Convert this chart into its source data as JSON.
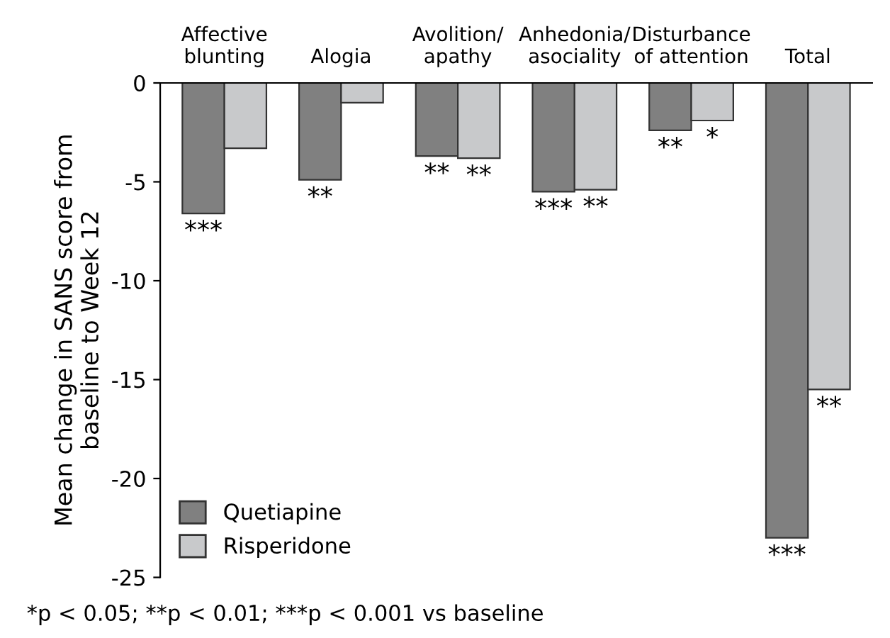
{
  "chart_data": {
    "type": "bar",
    "categories": [
      "Affective\nblunting",
      "Alogia",
      "Avolition/\napathy",
      "Anhedonia/\nasociality",
      "Disturbance\nof attention",
      "Total"
    ],
    "series": [
      {
        "name": "Quetiapine",
        "color": "#808080",
        "values": [
          -6.6,
          -4.9,
          -3.7,
          -5.5,
          -2.4,
          -23.0
        ]
      },
      {
        "name": "Risperidone",
        "color": "#c8c9cb",
        "values": [
          -3.3,
          -1.0,
          -3.8,
          -5.4,
          -1.9,
          -15.5
        ]
      }
    ],
    "ylabel": "Mean change in SANS score from\nbaseline to Week 12",
    "ylim": [
      -25,
      0
    ],
    "yticks": [
      -25,
      -20,
      -15,
      -10,
      -5,
      0
    ],
    "legend": "bottom left",
    "grid": false,
    "annotations": [
      {
        "text": "***",
        "x": "Affective\nblunting",
        "y": -6.6
      },
      {
        "text": "**",
        "x": "Alogia",
        "y": -4.9
      },
      {
        "text": "**",
        "x": "Avolition/\napathy",
        "y": -3.7
      },
      {
        "text": "**",
        "x": "Avolition/\napathy",
        "y": -3.8
      },
      {
        "text": "***",
        "x": "Anhedonia/\nasociality",
        "y": -5.5
      },
      {
        "text": "**",
        "x": "Anhedonia/\nasociality",
        "y": -5.4
      },
      {
        "text": "**",
        "x": "Disturbance\nof attention",
        "y": -2.4
      },
      {
        "text": "*",
        "x": "Disturbance\nof attention",
        "y": -1.9
      },
      {
        "text": "***",
        "x": "Total",
        "y": -23.0
      },
      {
        "text": "**",
        "x": "Total",
        "y": -15.5
      },
      "*p < 0.05; **p < 0.01; ***p < 0.001 vs baseline"
    ]
  }
}
